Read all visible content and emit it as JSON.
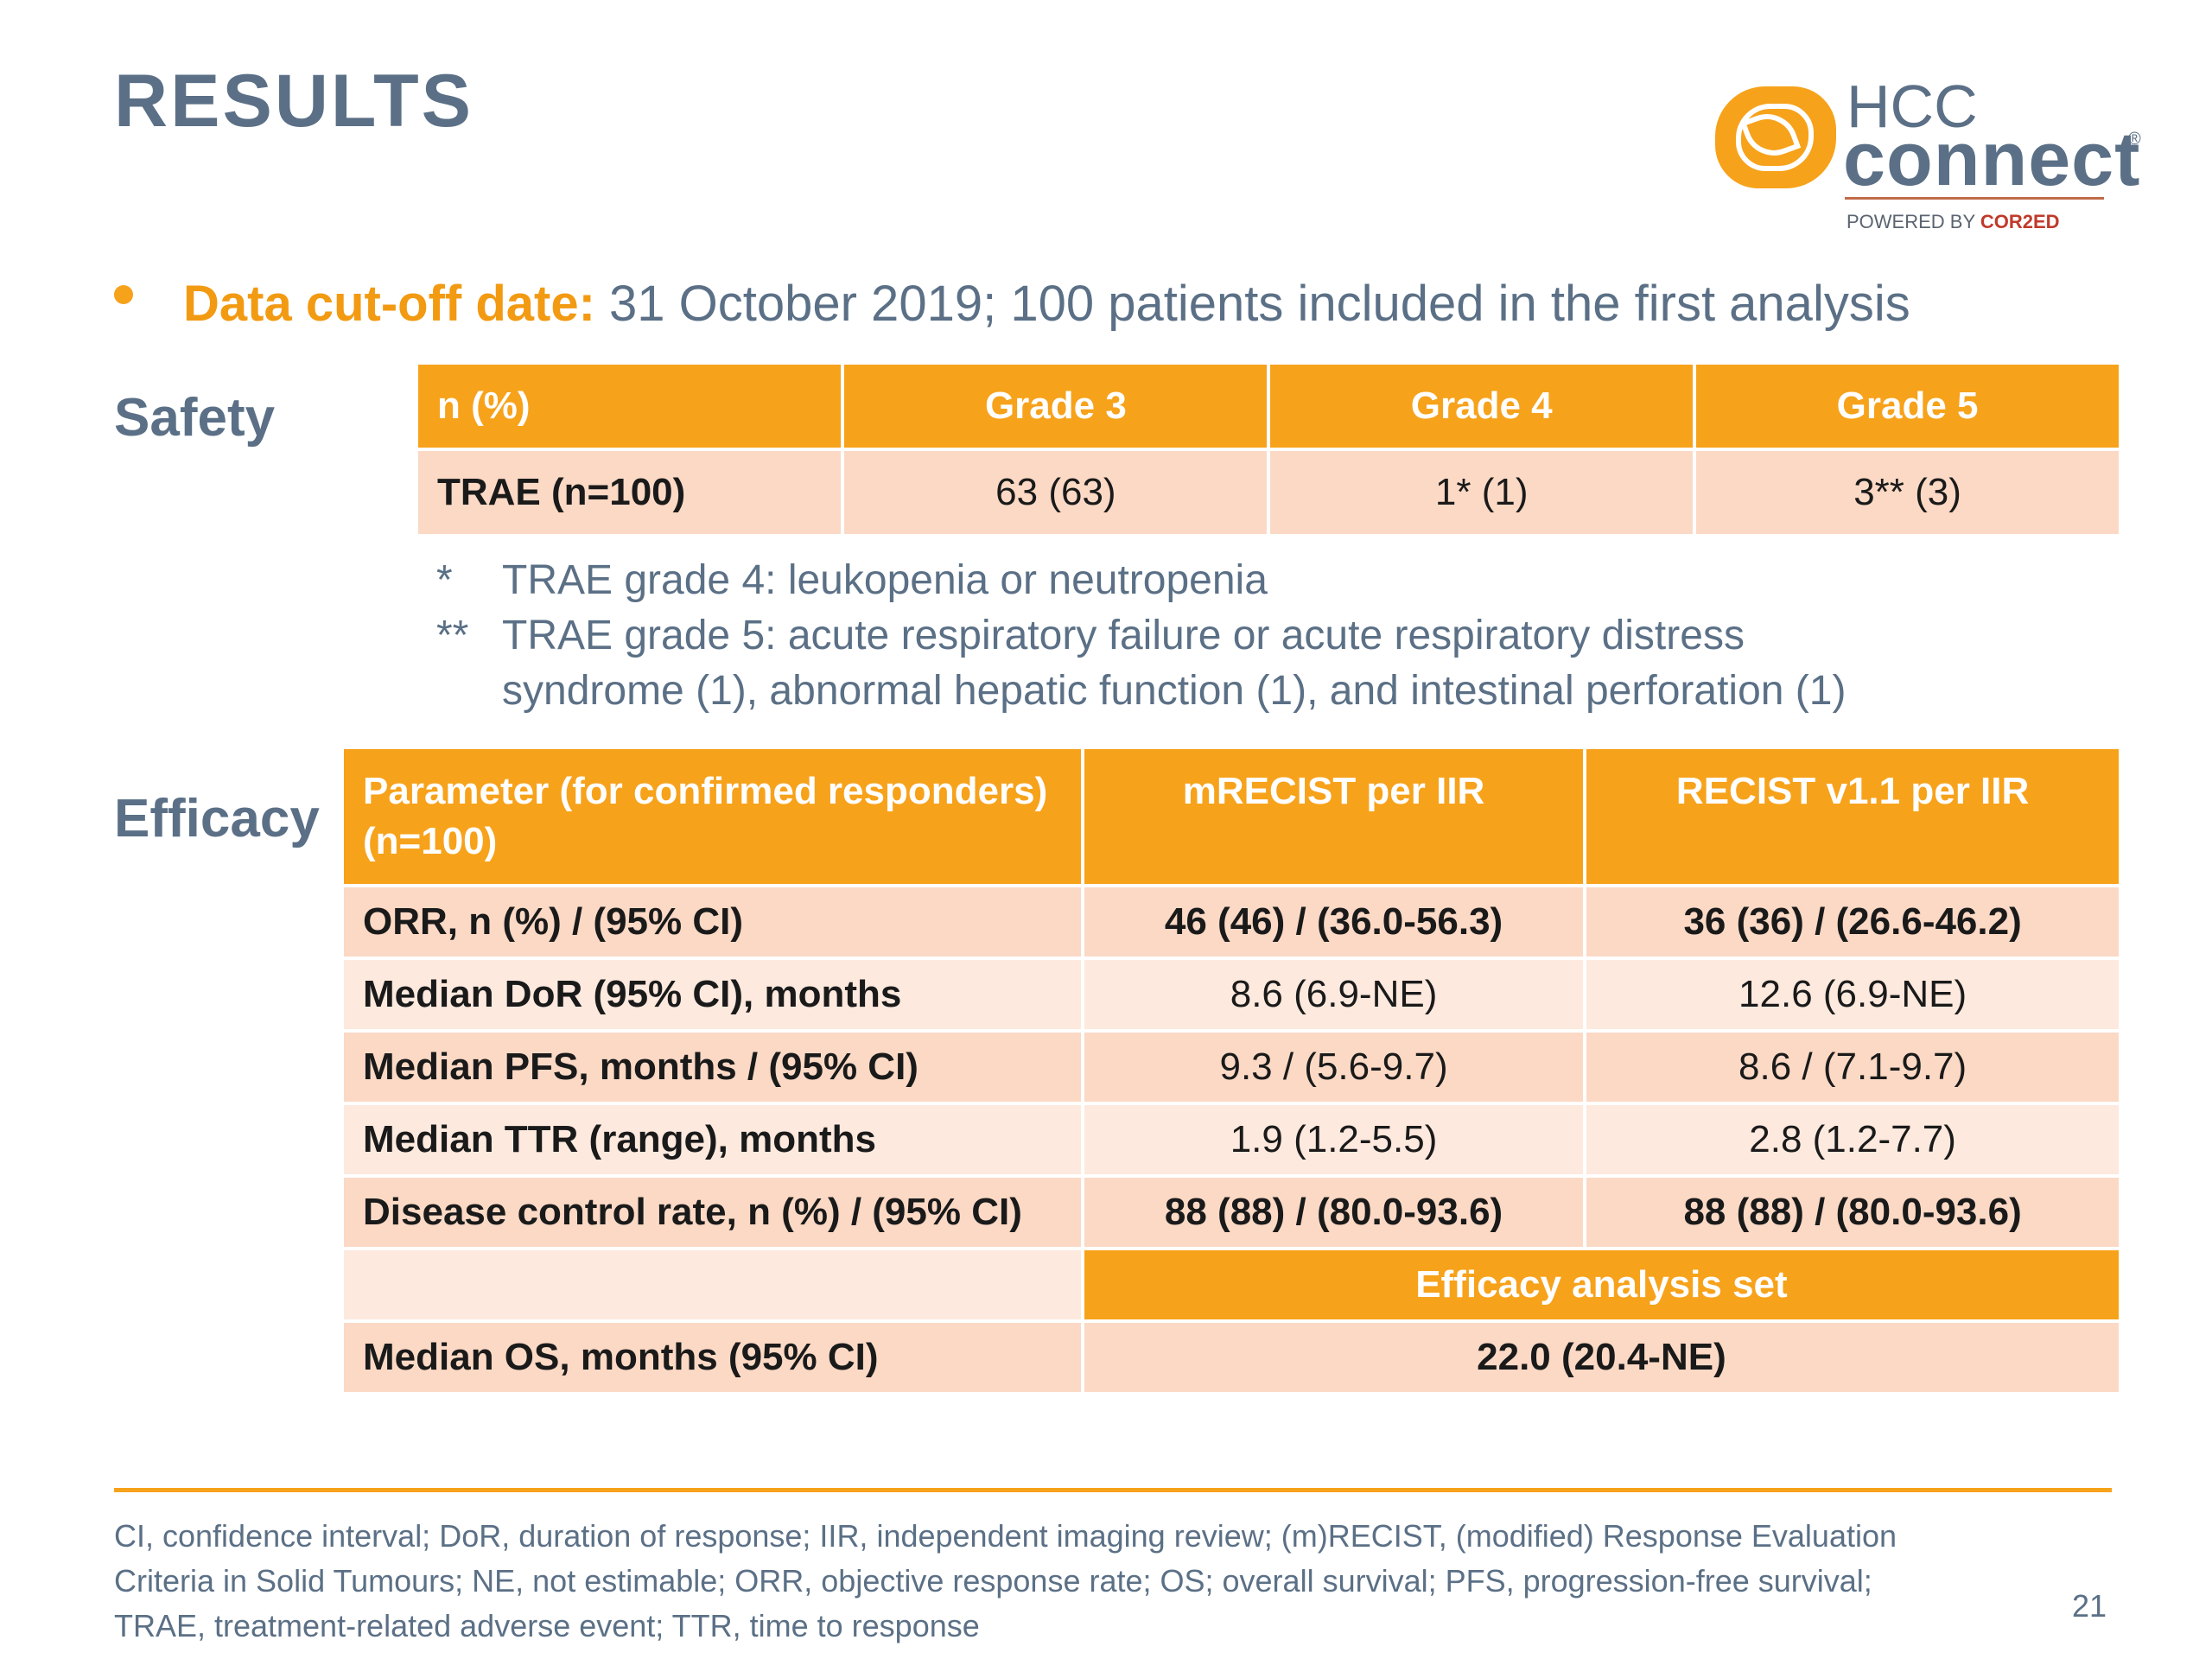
{
  "title": "RESULTS",
  "logo": {
    "hcc": "HCC",
    "connect": "connect",
    "reg": "®",
    "powered_prefix": "POWERED BY ",
    "powered_brand": "COR2ED"
  },
  "bullet": {
    "highlight": "Data cut-off date:",
    "text": " 31 October 2019; 100 patients included in the first analysis"
  },
  "safety": {
    "label": "Safety",
    "headers": [
      "n (%)",
      "Grade 3",
      "Grade 4",
      "Grade 5"
    ],
    "row": [
      "TRAE (n=100)",
      "63 (63)",
      "1* (1)",
      "3** (3)"
    ],
    "notes": [
      {
        "mark": "*",
        "lines": [
          "TRAE grade 4: leukopenia or neutropenia"
        ]
      },
      {
        "mark": "**",
        "lines": [
          "TRAE grade 5: acute respiratory failure or acute respiratory distress",
          "syndrome (1), abnormal hepatic function (1), and intestinal perforation (1)"
        ]
      }
    ]
  },
  "efficacy": {
    "label": "Efficacy",
    "header_param_line1": "Parameter (for confirmed responders)",
    "header_param_line2": "(n=100)",
    "header_col2": "mRECIST per IIR",
    "header_col3": "RECIST v1.1 per IIR",
    "rows": [
      {
        "param": "ORR, n (%) / (95% CI)",
        "col2": "46 (46) / (36.0-56.3)",
        "col3": "36 (36) / (26.6-46.2)"
      },
      {
        "param": "Median DoR (95% CI), months",
        "col2": "8.6 (6.9-NE)",
        "col3": "12.6 (6.9-NE)"
      },
      {
        "param": "Median PFS, months / (95% CI)",
        "col2": "9.3 / (5.6-9.7)",
        "col3": "8.6 / (7.1-9.7)"
      },
      {
        "param": "Median TTR (range), months",
        "col2": "1.9 (1.2-5.5)",
        "col3": "2.8 (1.2-7.7)"
      },
      {
        "param": "Disease control rate, n (%) / (95% CI)",
        "col2": "88 (88) / (80.0-93.6)",
        "col3": "88 (88) / (80.0-93.6)"
      }
    ],
    "analysis_set_header": "Efficacy analysis set",
    "os_row": {
      "param": "Median OS, months (95% CI)",
      "value": "22.0 (20.4-NE)"
    }
  },
  "footer": {
    "lines": [
      "CI, confidence interval; DoR, duration of response; IIR, independent imaging review; (m)RECIST, (modified) Response Evaluation",
      "Criteria in Solid Tumours; NE, not estimable; ORR, objective response rate; OS; overall survival; PFS, progression-free survival;",
      "TRAE, treatment-related adverse event; TTR, time to response"
    ],
    "page_number": "21"
  }
}
